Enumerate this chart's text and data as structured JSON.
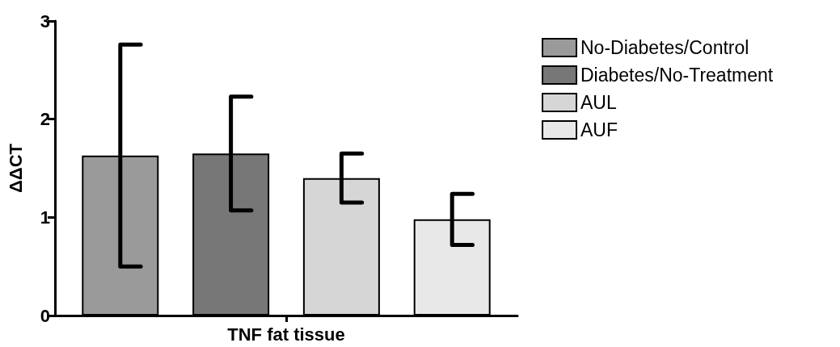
{
  "chart_data": {
    "type": "bar",
    "ylabel": "ΔΔCT",
    "categories": [
      "TNF fat tissue"
    ],
    "series": [
      {
        "name": "No-Diabetes/Control",
        "color": "#9a9a9a",
        "values": [
          1.63
        ],
        "errors": [
          1.13
        ]
      },
      {
        "name": "Diabetes/No-Treatment",
        "color": "#777777",
        "values": [
          1.65
        ],
        "errors": [
          0.58
        ]
      },
      {
        "name": "AUL",
        "color": "#d6d6d6",
        "values": [
          1.4
        ],
        "errors": [
          0.25
        ]
      },
      {
        "name": "AUF",
        "color": "#e8e8e8",
        "values": [
          0.98
        ],
        "errors": [
          0.26
        ]
      }
    ],
    "ylim": [
      0,
      3
    ],
    "yticks": [
      0,
      1,
      2,
      3
    ],
    "grid": false,
    "legend": "right"
  }
}
